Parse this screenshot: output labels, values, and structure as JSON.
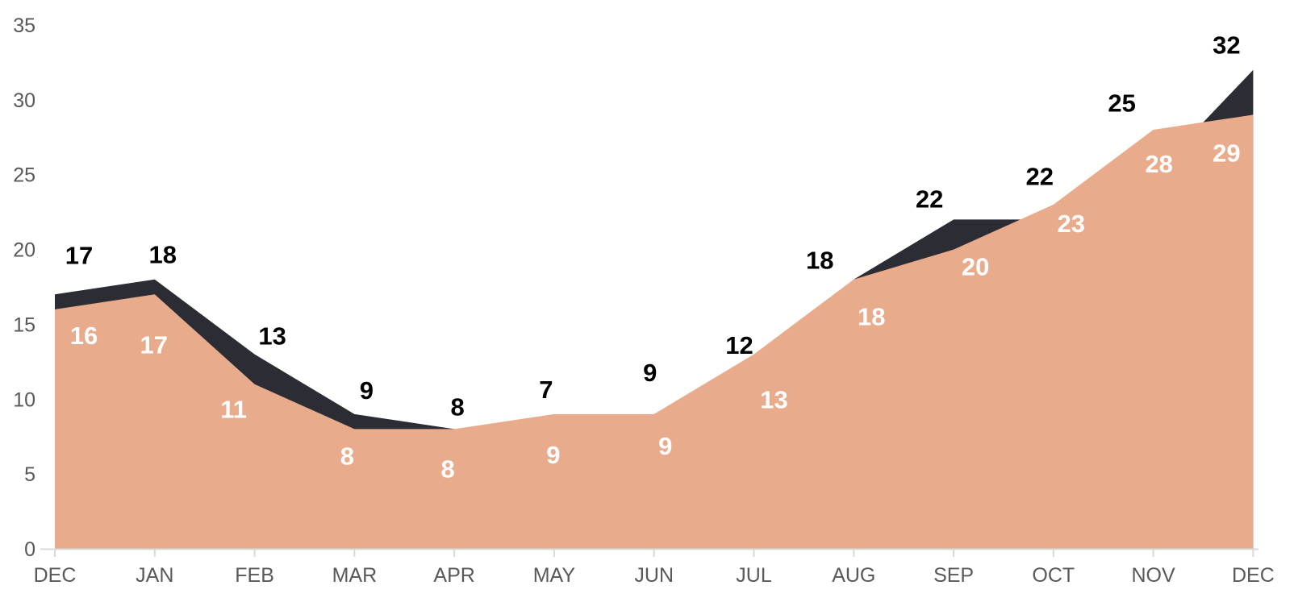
{
  "chart_data": {
    "type": "area",
    "title": "",
    "xlabel": "",
    "ylabel": "",
    "categories": [
      "DEC",
      "JAN",
      "FEB",
      "MAR",
      "APR",
      "MAY",
      "JUN",
      "JUL",
      "AUG",
      "SEP",
      "OCT",
      "NOV",
      "DEC"
    ],
    "series": [
      {
        "name": "dark",
        "color": "#2C2C34",
        "label_color": "#000000",
        "values": [
          17,
          18,
          13,
          9,
          8,
          7,
          9,
          12,
          18,
          22,
          22,
          25,
          32
        ]
      },
      {
        "name": "peach",
        "color": "#E8AB8B",
        "label_color": "#FFFFFF",
        "values": [
          16,
          17,
          11,
          8,
          8,
          9,
          9,
          13,
          18,
          20,
          23,
          28,
          29
        ]
      }
    ],
    "y_ticks": [
      0,
      5,
      10,
      15,
      20,
      25,
      30,
      35
    ],
    "ylim": [
      0,
      35
    ],
    "grid": false,
    "legend": false,
    "axis_text_color": "#595959",
    "axis_line_color": "#D9D9D9",
    "background_color": "#FFFFFF"
  }
}
